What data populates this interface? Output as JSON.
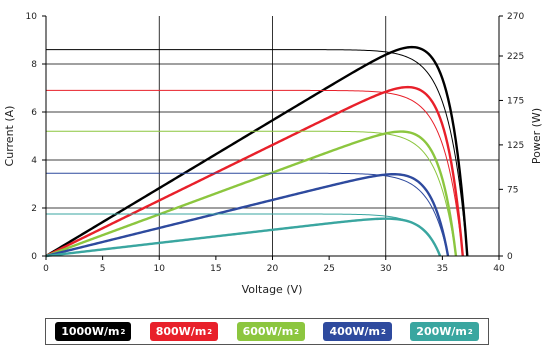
{
  "chart_data": {
    "type": "line",
    "xlabel": "Voltage (V)",
    "ylabel_left": "Current (A)",
    "ylabel_right": "Power (W)",
    "xlim": [
      0,
      40
    ],
    "ylim_left": [
      0,
      10
    ],
    "ylim_right": [
      0,
      270
    ],
    "x_ticks": [
      0,
      5,
      10,
      15,
      20,
      25,
      30,
      35,
      40
    ],
    "y_left_ticks": [
      0,
      2,
      4,
      6,
      8,
      10
    ],
    "y_right_ticks": [
      0,
      75,
      125,
      175,
      225,
      270
    ],
    "grid": true,
    "legend_position": "bottom",
    "series": [
      {
        "name": "1000W/m",
        "unit_sup": "2",
        "color": "#000000",
        "isc": 8.6,
        "voc": 37.2,
        "pmax": 235,
        "vmp": 29.5,
        "ilabel_color": "#000000"
      },
      {
        "name": "800W/m",
        "unit_sup": "2",
        "color": "#e8202a",
        "isc": 6.9,
        "voc": 36.8,
        "pmax": 190,
        "vmp": 29.8,
        "ilabel_color": "#e8202a"
      },
      {
        "name": "600W/m",
        "unit_sup": "2",
        "color": "#8cc63f",
        "isc": 5.2,
        "voc": 36.2,
        "pmax": 140,
        "vmp": 30.5,
        "ilabel_color": "#8cc63f"
      },
      {
        "name": "400W/m",
        "unit_sup": "2",
        "color": "#2e4a9e",
        "isc": 3.45,
        "voc": 35.5,
        "pmax": 92,
        "vmp": 30.8,
        "ilabel_color": "#2e4a9e"
      },
      {
        "name": "200W/m",
        "unit_sup": "2",
        "color": "#3aa6a0",
        "isc": 1.75,
        "voc": 34.8,
        "pmax": 42,
        "vmp": 31.0,
        "ilabel_color": "#3aa6a0"
      }
    ]
  }
}
